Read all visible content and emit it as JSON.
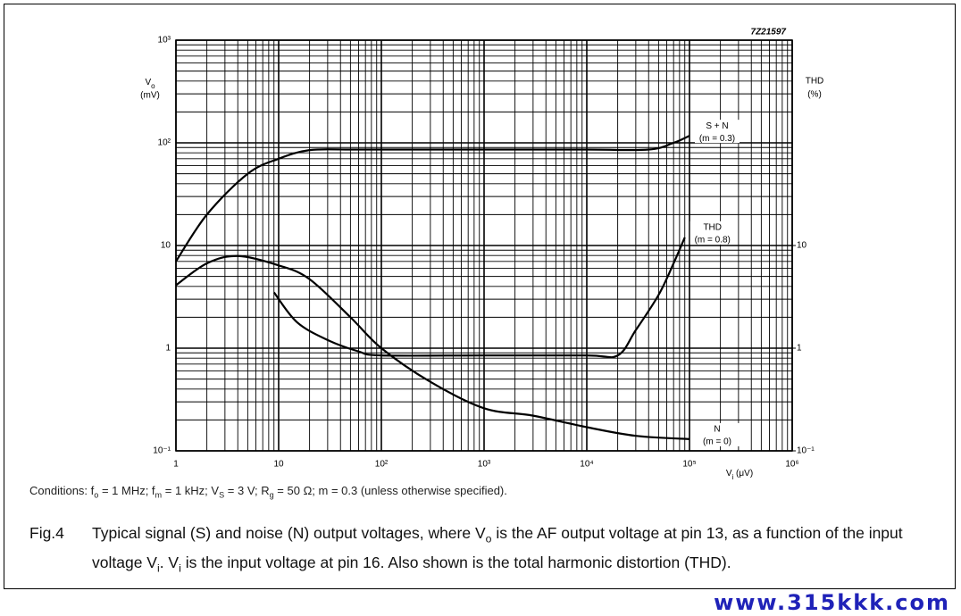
{
  "page": {
    "code": "7Z21597",
    "watermark": "www.315kkk.com",
    "conditions": [
      {
        "text": "Conditions: f"
      },
      {
        "text": "o",
        "sub": true
      },
      {
        "text": " = 1 MHz; f"
      },
      {
        "text": "m",
        "sub": true
      },
      {
        "text": " = 1 kHz; V"
      },
      {
        "text": "S",
        "sub": true
      },
      {
        "text": " = 3 V; R"
      },
      {
        "text": "g",
        "sub": true
      },
      {
        "text": " = 50 Ω; m = 0.3 (unless otherwise specified)."
      }
    ],
    "caption": {
      "label": "Fig.4",
      "text": [
        {
          "text": "Typical signal (S) and noise (N) output voltages, where V"
        },
        {
          "text": "o",
          "sub": true
        },
        {
          "text": " is the AF output voltage at pin 13, as a function of the input voltage V"
        },
        {
          "text": "i",
          "sub": true
        },
        {
          "text": ". V"
        },
        {
          "text": "i",
          "sub": true
        },
        {
          "text": " is the input voltage at pin 16. Also shown is the total harmonic distortion (THD)."
        }
      ]
    }
  },
  "chart_data": {
    "type": "line",
    "x_scale": "log",
    "y_scale": "log",
    "grid": true,
    "minor_grid": true,
    "y_label": [
      {
        "text": "V"
      },
      {
        "text": "o",
        "sub": true
      }
    ],
    "y_unit": "(mV)",
    "y2_label": "THD",
    "y2_unit": "(%)",
    "x_label": [
      {
        "text": "V"
      },
      {
        "text": "i",
        "sub": true
      },
      {
        "text": " (μV)"
      }
    ],
    "xlim": [
      1,
      1000000
    ],
    "ylim": [
      0.1,
      1000
    ],
    "y2lim": [
      0.1,
      1000
    ],
    "xticks": [
      1,
      10,
      {
        "value": 100,
        "label": "10²"
      },
      {
        "value": 1000,
        "label": "10³"
      },
      {
        "value": 10000,
        "label": "10⁴"
      },
      {
        "value": 100000,
        "label": "10⁵"
      },
      {
        "value": 1000000,
        "label": "10⁶"
      }
    ],
    "yticks": [
      {
        "value": 0.1,
        "label": "10⁻¹"
      },
      1,
      10,
      {
        "value": 100,
        "label": "10²"
      },
      {
        "value": 1000,
        "label": "10³"
      }
    ],
    "y2ticks": [
      {
        "value": 0.1,
        "label": "10⁻¹"
      },
      1,
      10
    ],
    "series": [
      {
        "name": "S + N",
        "note": "(m = 0.3)",
        "color": "#000000",
        "x": [
          1,
          2,
          5,
          10,
          20,
          50,
          100,
          1000,
          10000,
          40000,
          70000,
          100000
        ],
        "values": [
          7,
          20,
          50,
          70,
          85,
          86,
          86,
          86,
          86,
          86,
          100,
          117
        ]
      },
      {
        "name": "THD",
        "note": "(m = 0.8)",
        "color": "#000000",
        "axis": "y2",
        "x": [
          9,
          15,
          30,
          60,
          100,
          1000,
          10000,
          20000,
          30000,
          50000,
          70000,
          90000
        ],
        "values": [
          3.5,
          1.8,
          1.2,
          0.93,
          0.85,
          0.85,
          0.85,
          0.85,
          1.5,
          3.3,
          6.7,
          12
        ]
      },
      {
        "name": "N",
        "note": "(m = 0)",
        "color": "#000000",
        "x": [
          1,
          2,
          4,
          10,
          20,
          50,
          100,
          300,
          1000,
          3000,
          10000,
          30000,
          100000
        ],
        "values": [
          4.1,
          6.7,
          7.9,
          6.4,
          4.7,
          2.0,
          1,
          0.47,
          0.26,
          0.22,
          0.17,
          0.14,
          0.13
        ]
      }
    ]
  }
}
